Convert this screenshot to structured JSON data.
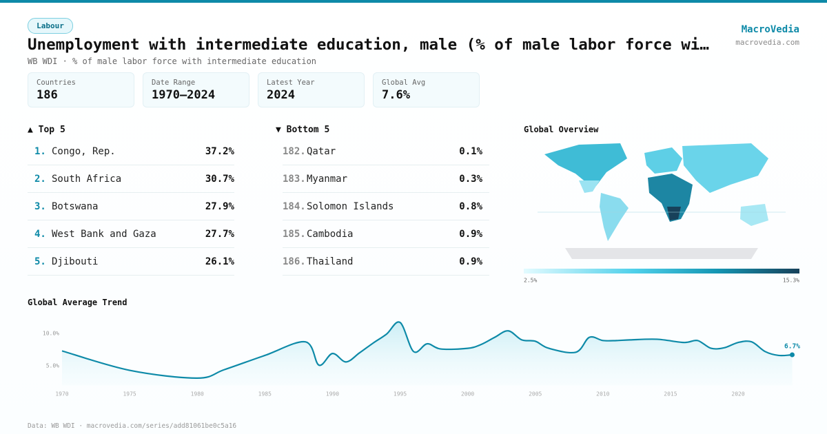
{
  "badge": "Labour",
  "title": "Unemployment with intermediate education, male (% of male labor force wi…",
  "subtitle": "WB WDI · % of male labor force with intermediate education",
  "brand": {
    "name": "MacroVedia",
    "site": "macrovedia.com"
  },
  "stats": [
    {
      "label": "Countries",
      "value": "186"
    },
    {
      "label": "Date Range",
      "value": "1970–2024"
    },
    {
      "label": "Latest Year",
      "value": "2024"
    },
    {
      "label": "Global Avg",
      "value": "7.6%"
    }
  ],
  "top": {
    "heading": "▲ Top 5",
    "rows": [
      {
        "rank": "1.",
        "name": "Congo, Rep.",
        "value": "37.2%"
      },
      {
        "rank": "2.",
        "name": "South Africa",
        "value": "30.7%"
      },
      {
        "rank": "3.",
        "name": "Botswana",
        "value": "27.9%"
      },
      {
        "rank": "4.",
        "name": "West Bank and Gaza",
        "value": "27.7%"
      },
      {
        "rank": "5.",
        "name": "Djibouti",
        "value": "26.1%"
      }
    ]
  },
  "bottom": {
    "heading": "▼ Bottom 5",
    "rows": [
      {
        "rank": "182.",
        "name": "Qatar",
        "value": "0.1%"
      },
      {
        "rank": "183.",
        "name": "Myanmar",
        "value": "0.3%"
      },
      {
        "rank": "184.",
        "name": "Solomon Islands",
        "value": "0.8%"
      },
      {
        "rank": "185.",
        "name": "Cambodia",
        "value": "0.9%"
      },
      {
        "rank": "186.",
        "name": "Thailand",
        "value": "0.9%"
      }
    ]
  },
  "map": {
    "heading": "Global Overview",
    "scale_min": "2.5%",
    "scale_max": "15.3%"
  },
  "chart_data": {
    "type": "line",
    "title": "Global Average Trend",
    "color": "#0e8aa8",
    "x": [
      1970,
      1975,
      1980,
      1982,
      1985,
      1988,
      1989,
      1990,
      1991,
      1992,
      1993,
      1994,
      1995,
      1996,
      1997,
      1998,
      2000,
      2001,
      2002,
      2003,
      2004,
      2005,
      2006,
      2008,
      2009,
      2010,
      2011,
      2012,
      2014,
      2016,
      2017,
      2018,
      2019,
      2020,
      2021,
      2022,
      2023,
      2024
    ],
    "values": [
      7.3,
      4.3,
      3.1,
      4.4,
      6.6,
      8.7,
      5.1,
      6.9,
      5.6,
      7.0,
      8.5,
      9.9,
      11.7,
      7.2,
      8.4,
      7.6,
      7.7,
      8.3,
      9.4,
      10.4,
      9.0,
      8.8,
      7.7,
      7.1,
      9.4,
      8.9,
      8.9,
      9.0,
      9.1,
      8.6,
      8.9,
      7.7,
      7.8,
      8.6,
      8.7,
      7.2,
      6.6,
      6.7
    ],
    "value_labels": [
      null,
      null,
      null,
      null,
      null,
      null,
      null,
      null,
      null,
      null,
      null,
      null,
      null,
      null,
      null,
      null,
      null,
      null,
      null,
      null,
      null,
      null,
      null,
      null,
      null,
      null,
      null,
      null,
      null,
      null,
      null,
      null,
      null,
      null,
      null,
      null,
      null,
      "6.7%"
    ],
    "xlim": [
      1970,
      2024
    ],
    "xticks": [
      1970,
      1975,
      1980,
      1985,
      1990,
      1995,
      2000,
      2005,
      2010,
      2015,
      2020
    ],
    "ylim": [
      2,
      12
    ],
    "yticks": [
      {
        "value": 5,
        "label": "5.0%"
      },
      {
        "value": 10,
        "label": "10.0%"
      }
    ],
    "grid": false
  },
  "footer": "Data: WB WDI · macrovedia.com/series/add81061be0c5a16"
}
